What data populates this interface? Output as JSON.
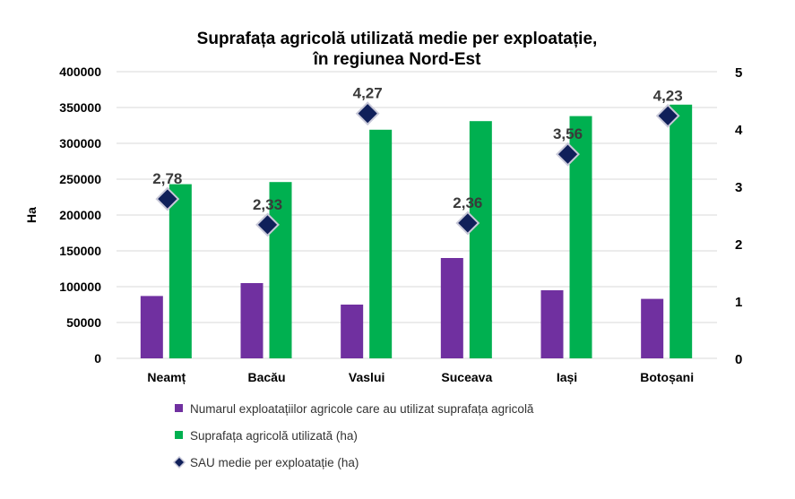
{
  "chart_data": {
    "type": "bar",
    "title_lines": [
      "Suprafața agricolă utilizată medie per exploatație,",
      "în regiunea Nord-Est"
    ],
    "ylabel": "Ha",
    "xlabel": "",
    "ylim": [
      0,
      400000
    ],
    "y2lim": [
      0,
      5
    ],
    "yticks": [
      0,
      50000,
      100000,
      150000,
      200000,
      250000,
      300000,
      350000,
      400000
    ],
    "y2ticks": [
      0,
      1,
      2,
      3,
      4,
      5
    ],
    "categories": [
      "Neamț",
      "Bacău",
      "Vaslui",
      "Suceava",
      "Iași",
      "Botoșani"
    ],
    "series": [
      {
        "name": "Numarul exploatațiilor agricole  care au utilizat suprafața agricolă",
        "type": "bar",
        "axis": "left",
        "color": "#7030a0",
        "values": [
          87000,
          105000,
          75000,
          140000,
          95000,
          83000
        ]
      },
      {
        "name": "Suprafața agricolă utilizată (ha)",
        "type": "bar",
        "axis": "left",
        "color": "#00b050",
        "values": [
          243000,
          246000,
          319000,
          331000,
          338000,
          354000
        ]
      },
      {
        "name": "SAU medie per exploatație (ha)",
        "type": "scatter",
        "axis": "right",
        "color": "#10205a",
        "values": [
          2.78,
          2.33,
          4.27,
          2.36,
          3.56,
          4.23
        ],
        "labels": [
          "2,78",
          "2,33",
          "4,27",
          "2,36",
          "3,56",
          "4,23"
        ]
      }
    ],
    "grid": true,
    "legend_position": "bottom"
  }
}
